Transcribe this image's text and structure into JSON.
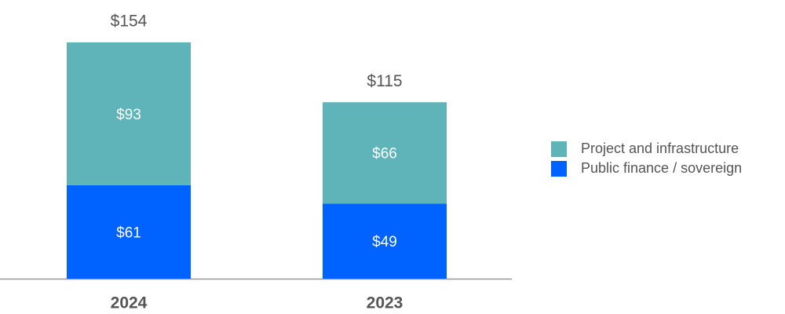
{
  "chart_data": {
    "type": "stacked_bar",
    "categories": [
      "2024",
      "2023"
    ],
    "series": [
      {
        "name": "Public finance / sovereign",
        "color": "#0062ff",
        "values": [
          61,
          49
        ],
        "value_labels": [
          "$61",
          "$49"
        ]
      },
      {
        "name": "Project and infrastructure",
        "color": "#5fb4ba",
        "values": [
          93,
          66
        ],
        "value_labels": [
          "$93",
          "$66"
        ]
      }
    ],
    "totals": {
      "values": [
        154,
        115
      ],
      "value_labels": [
        "$154",
        "$115"
      ]
    },
    "legend": "right"
  }
}
